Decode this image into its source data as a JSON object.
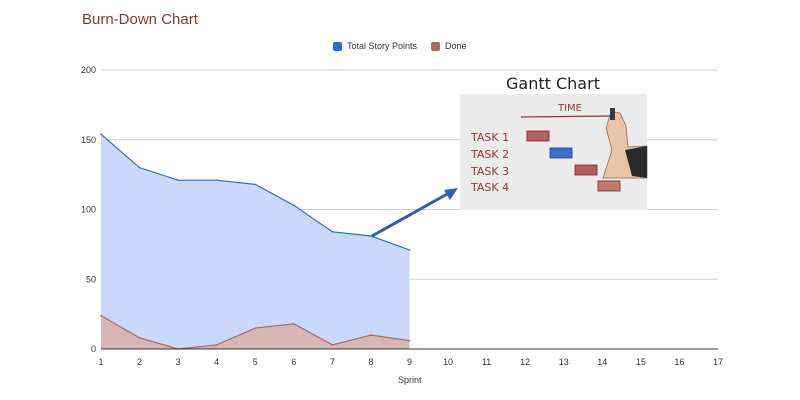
{
  "title": "Burn-Down Chart",
  "colors": {
    "total": "#3367d6",
    "total_fill": "#c6d7fb",
    "done": "#a56b64",
    "done_fill": "#d9b4b1",
    "grid": "#d0d0d0",
    "arrow": "#2f5fae",
    "title": "#7a3b2e"
  },
  "chart_data": {
    "type": "area",
    "title": "Burn-Down Chart",
    "xlabel": "Sprint",
    "ylabel": "",
    "xlim": [
      1,
      17
    ],
    "ylim": [
      0,
      200
    ],
    "x_ticks": [
      1,
      2,
      3,
      4,
      5,
      6,
      7,
      8,
      9,
      10,
      11,
      12,
      13,
      14,
      15,
      16,
      17
    ],
    "y_ticks": [
      0,
      50,
      100,
      150,
      200
    ],
    "grid": true,
    "legend_position": "top-center",
    "x": [
      1,
      2,
      3,
      4,
      5,
      6,
      7,
      8,
      9
    ],
    "series": [
      {
        "name": "Total Story Points",
        "color": "#3367d6",
        "values": [
          154,
          130,
          121,
          121,
          118,
          103,
          84,
          81,
          71
        ]
      },
      {
        "name": "Done",
        "color": "#a56b64",
        "values": [
          24,
          8,
          0,
          3,
          15,
          18,
          3,
          10,
          6
        ]
      }
    ]
  },
  "inset": {
    "title": "Gantt Chart",
    "time_label": "TIME",
    "tasks": [
      "TASK 1",
      "TASK 2",
      "TASK 3",
      "TASK 4"
    ]
  }
}
